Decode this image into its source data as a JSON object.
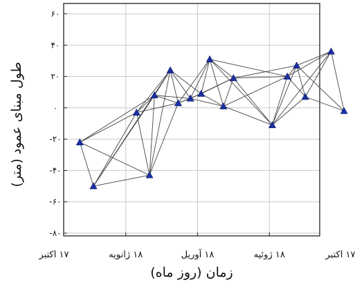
{
  "chart_data": {
    "type": "scatter",
    "title": "",
    "xlabel": "زمان (روز ماه)",
    "ylabel": "طول مبنای عمود (متر)",
    "x_categories": [
      "۱۷ اکتبر",
      "۱۸ ژانویه",
      "۱۸ آوریل",
      "۱۸ ژوئیه",
      "۱۷ اکتبر"
    ],
    "y_ticks": [
      {
        "value": 60,
        "label": "۶۰"
      },
      {
        "value": 40,
        "label": "۴۰"
      },
      {
        "value": 20,
        "label": "۲۰"
      },
      {
        "value": 0,
        "label": "۰"
      },
      {
        "value": -20,
        "label": "-۲۰"
      },
      {
        "value": -40,
        "label": "-۴۰"
      },
      {
        "value": -60,
        "label": "-۶۰"
      },
      {
        "value": -80,
        "label": "-۸۰"
      }
    ],
    "xlim": [
      0,
      4
    ],
    "ylim": [
      -80,
      65
    ],
    "grid": true,
    "marker": "triangle",
    "marker_color": "#1a2fa0",
    "line_color": "#444444",
    "points": [
      {
        "id": "A",
        "x": 0.36,
        "y": -22
      },
      {
        "id": "B",
        "x": 0.55,
        "y": -50
      },
      {
        "id": "C",
        "x": 1.15,
        "y": -3
      },
      {
        "id": "D",
        "x": 1.33,
        "y": -43
      },
      {
        "id": "E",
        "x": 1.4,
        "y": 8
      },
      {
        "id": "F",
        "x": 1.62,
        "y": 24
      },
      {
        "id": "G",
        "x": 1.73,
        "y": 3
      },
      {
        "id": "H",
        "x": 1.9,
        "y": 6
      },
      {
        "id": "I",
        "x": 2.05,
        "y": 9
      },
      {
        "id": "J",
        "x": 2.17,
        "y": 31
      },
      {
        "id": "K",
        "x": 2.36,
        "y": 1
      },
      {
        "id": "L",
        "x": 2.5,
        "y": 19
      },
      {
        "id": "M",
        "x": 3.04,
        "y": -11
      },
      {
        "id": "N",
        "x": 3.25,
        "y": 20
      },
      {
        "id": "O",
        "x": 3.38,
        "y": 27
      },
      {
        "id": "P",
        "x": 3.5,
        "y": 7
      },
      {
        "id": "Q",
        "x": 3.86,
        "y": 36
      },
      {
        "id": "R",
        "x": 4.04,
        "y": -2
      }
    ],
    "edges": [
      [
        "A",
        "B"
      ],
      [
        "A",
        "C"
      ],
      [
        "A",
        "D"
      ],
      [
        "A",
        "E"
      ],
      [
        "B",
        "C"
      ],
      [
        "B",
        "D"
      ],
      [
        "B",
        "E"
      ],
      [
        "B",
        "F"
      ],
      [
        "C",
        "D"
      ],
      [
        "C",
        "E"
      ],
      [
        "C",
        "F"
      ],
      [
        "C",
        "G"
      ],
      [
        "D",
        "E"
      ],
      [
        "D",
        "F"
      ],
      [
        "D",
        "G"
      ],
      [
        "E",
        "F"
      ],
      [
        "E",
        "G"
      ],
      [
        "E",
        "H"
      ],
      [
        "F",
        "G"
      ],
      [
        "F",
        "H"
      ],
      [
        "F",
        "I"
      ],
      [
        "G",
        "H"
      ],
      [
        "G",
        "I"
      ],
      [
        "G",
        "J"
      ],
      [
        "H",
        "I"
      ],
      [
        "H",
        "J"
      ],
      [
        "H",
        "K"
      ],
      [
        "H",
        "L"
      ],
      [
        "I",
        "J"
      ],
      [
        "I",
        "K"
      ],
      [
        "I",
        "L"
      ],
      [
        "J",
        "K"
      ],
      [
        "J",
        "L"
      ],
      [
        "J",
        "M"
      ],
      [
        "J",
        "N"
      ],
      [
        "K",
        "L"
      ],
      [
        "K",
        "M"
      ],
      [
        "K",
        "N"
      ],
      [
        "L",
        "M"
      ],
      [
        "L",
        "N"
      ],
      [
        "L",
        "O"
      ],
      [
        "M",
        "N"
      ],
      [
        "M",
        "O"
      ],
      [
        "M",
        "P"
      ],
      [
        "M",
        "Q"
      ],
      [
        "N",
        "O"
      ],
      [
        "N",
        "P"
      ],
      [
        "N",
        "Q"
      ],
      [
        "O",
        "P"
      ],
      [
        "O",
        "Q"
      ],
      [
        "O",
        "R"
      ],
      [
        "P",
        "Q"
      ],
      [
        "P",
        "R"
      ],
      [
        "Q",
        "R"
      ]
    ]
  }
}
